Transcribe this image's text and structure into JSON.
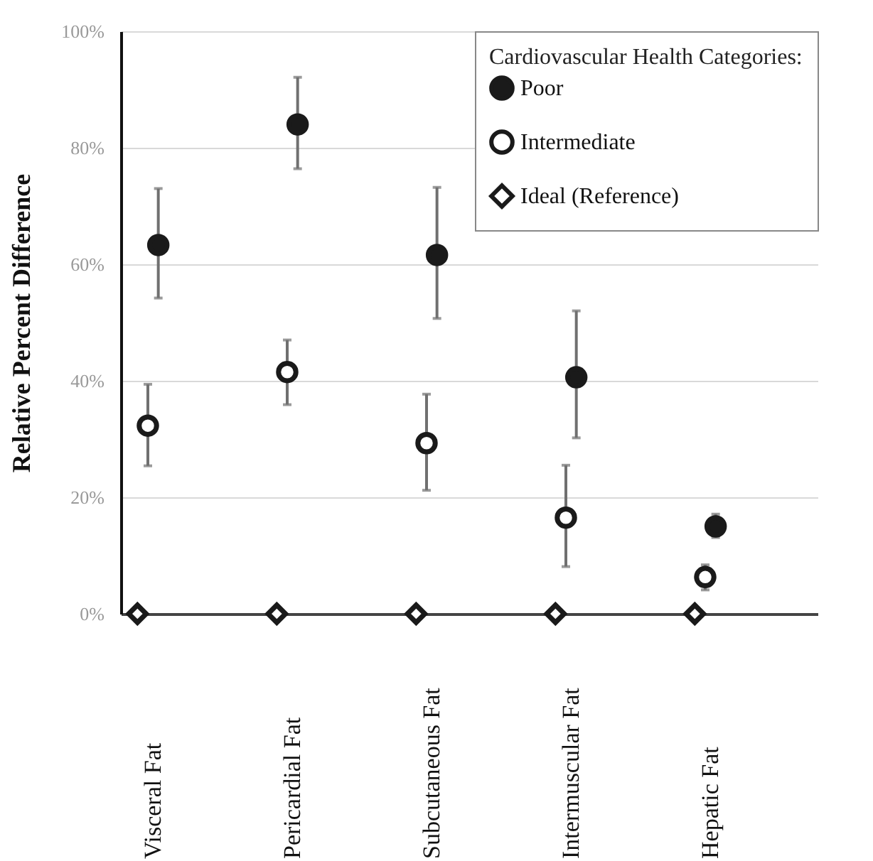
{
  "chart_data": {
    "type": "scatter",
    "ylabel": "Relative Percent Difference",
    "legend_title": "Cardiovascular Health Categories:",
    "categories": [
      "Visceral Fat",
      "Pericardial Fat",
      "Subcutaneous Fat",
      "Intermuscular Fat",
      "Hepatic Fat"
    ],
    "series": [
      {
        "name": "Poor",
        "color": "#1a1a1a",
        "marker": "circle",
        "values": [
          63.3,
          84.0,
          61.6,
          40.6,
          15.0
        ],
        "errors": [
          [
            54.2,
            73.0
          ],
          [
            76.4,
            92.1
          ],
          [
            50.7,
            73.2
          ],
          [
            30.2,
            52.0
          ],
          [
            13.1,
            17.1
          ]
        ]
      },
      {
        "name": "Intermediate",
        "color": "#1a1a1a",
        "marker": "circle",
        "values": [
          32.3,
          41.5,
          29.3,
          16.5,
          6.3
        ],
        "errors": [
          [
            25.4,
            39.4
          ],
          [
            35.9,
            47.0
          ],
          [
            21.2,
            37.7
          ],
          [
            8.1,
            25.5
          ],
          [
            4.1,
            8.4
          ]
        ]
      },
      {
        "name": "Ideal (Reference)",
        "color": "#1a1a1a",
        "marker": "diamond",
        "values": [
          0,
          0,
          0,
          0,
          0
        ]
      }
    ],
    "ylim": [
      0,
      100
    ],
    "yticks": [
      {
        "value": 0,
        "label": "0%"
      },
      {
        "value": 20,
        "label": "20%"
      },
      {
        "value": 40,
        "label": "40%"
      },
      {
        "value": 60,
        "label": "60%"
      },
      {
        "value": 80,
        "label": "80%"
      },
      {
        "value": 100,
        "label": "100%"
      }
    ],
    "grid": "y",
    "legend": "top right"
  }
}
